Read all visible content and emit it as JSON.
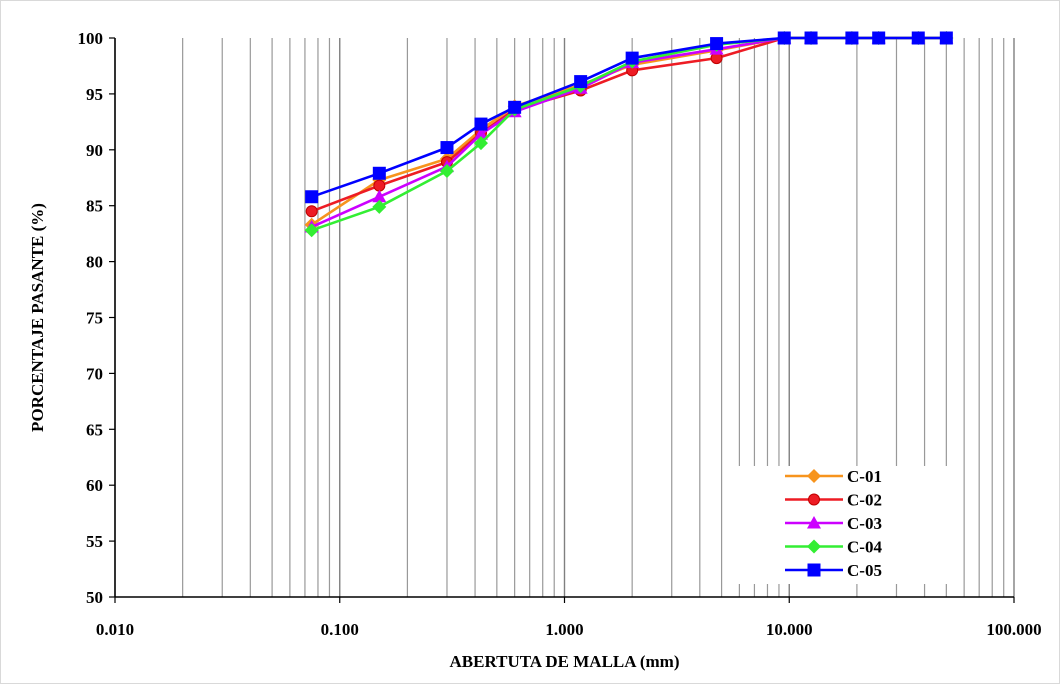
{
  "chart_data": {
    "type": "line",
    "xlabel": "ABERTUTA DE MALLA (mm)",
    "ylabel": "PORCENTAJE PASANTE (%)",
    "xscale": "log",
    "xlim": [
      0.01,
      100
    ],
    "ylim": [
      50,
      100
    ],
    "x_ticks": [
      "0.010",
      "0.100",
      "1.000",
      "10.000",
      "100.000"
    ],
    "y_ticks": [
      "50",
      "55",
      "60",
      "65",
      "70",
      "75",
      "80",
      "85",
      "90",
      "95",
      "100"
    ],
    "grid": "vertical log gridlines",
    "legend_position": "bottom-right",
    "series": [
      {
        "name": "C-01",
        "color": "#f7941d",
        "marker": "diamond",
        "x": [
          0.075,
          0.15,
          0.3,
          0.425,
          0.6,
          1.18,
          2.0,
          4.75,
          9.5,
          12.5,
          19.0,
          25.0,
          37.5,
          50.0
        ],
        "y": [
          83.3,
          87.3,
          89.2,
          91.8,
          93.9,
          95.8,
          97.6,
          98.9,
          100,
          100,
          100,
          100,
          100,
          100
        ]
      },
      {
        "name": "C-02",
        "color": "#ed1c24",
        "marker": "circle",
        "x": [
          0.075,
          0.15,
          0.3,
          0.425,
          0.6,
          1.18,
          2.0,
          4.75,
          9.5,
          12.5,
          19.0,
          25.0,
          37.5,
          50.0
        ],
        "y": [
          84.5,
          86.8,
          88.9,
          91.5,
          93.6,
          95.3,
          97.1,
          98.2,
          100,
          100,
          100,
          100,
          100,
          100
        ]
      },
      {
        "name": "C-03",
        "color": "#cc00ff",
        "marker": "triangle",
        "x": [
          0.075,
          0.15,
          0.3,
          0.425,
          0.6,
          1.18,
          2.0,
          4.75,
          9.5,
          12.5,
          19.0,
          25.0,
          37.5,
          50.0
        ],
        "y": [
          83.1,
          85.8,
          88.5,
          91.4,
          93.4,
          95.5,
          97.8,
          99.0,
          100,
          100,
          100,
          100,
          100,
          100
        ]
      },
      {
        "name": "C-04",
        "color": "#33ee33",
        "marker": "diamond",
        "x": [
          0.075,
          0.15,
          0.3,
          0.425,
          0.6,
          1.18,
          2.0,
          4.75,
          9.5,
          12.5,
          19.0,
          25.0,
          37.5,
          50.0
        ],
        "y": [
          82.8,
          84.9,
          88.1,
          90.6,
          93.6,
          95.7,
          97.9,
          99.4,
          100,
          100,
          100,
          100,
          100,
          100
        ]
      },
      {
        "name": "C-05",
        "color": "#0000ff",
        "marker": "square",
        "x": [
          0.075,
          0.15,
          0.3,
          0.425,
          0.6,
          1.18,
          2.0,
          4.75,
          9.5,
          12.5,
          19.0,
          25.0,
          37.5,
          50.0
        ],
        "y": [
          85.8,
          87.9,
          90.2,
          92.3,
          93.8,
          96.1,
          98.2,
          99.5,
          100,
          100,
          100,
          100,
          100,
          100
        ]
      }
    ]
  }
}
